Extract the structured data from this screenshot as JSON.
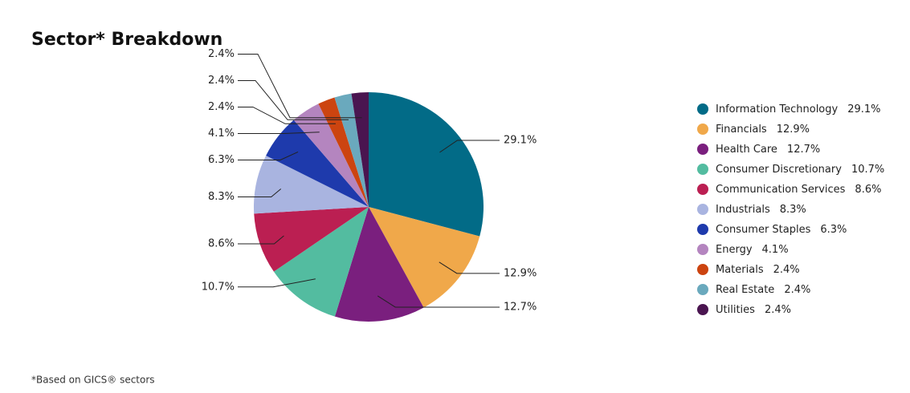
{
  "chart_data": {
    "type": "pie",
    "title": "Sector* Breakdown",
    "footnote": "*Based on GICS® sectors",
    "categories": [
      "Information Technology",
      "Financials",
      "Health Care",
      "Consumer Discretionary",
      "Communication Services",
      "Industrials",
      "Consumer Staples",
      "Energy",
      "Materials",
      "Real Estate",
      "Utilities"
    ],
    "values": [
      29.1,
      12.9,
      12.7,
      10.7,
      8.6,
      8.3,
      6.3,
      4.1,
      2.4,
      2.4,
      2.4
    ],
    "value_labels": [
      "29.1%",
      "12.9%",
      "12.7%",
      "10.7%",
      "8.6%",
      "8.3%",
      "6.3%",
      "4.1%",
      "2.4%",
      "2.4%",
      "2.4%"
    ],
    "colors": [
      "#026b87",
      "#f0a84a",
      "#7a1f7e",
      "#53bca0",
      "#bb1f52",
      "#a9b4e0",
      "#1e3aac",
      "#b485bf",
      "#cc4410",
      "#6aa9bd",
      "#4a1550"
    ],
    "legend": "right"
  }
}
